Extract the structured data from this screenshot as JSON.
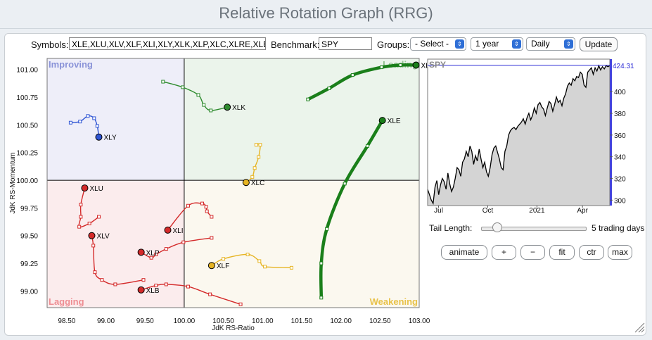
{
  "title": "Relative Rotation Graph (RRG)",
  "controls": {
    "symbols_label": "Symbols:",
    "symbols_value": "XLE,XLU,XLV,XLF,XLI,XLY,XLK,XLP,XLC,XLRE,XLB",
    "benchmark_label": "Benchmark:",
    "benchmark_value": "SPY",
    "groups_label": "Groups:",
    "groups_value": "- Select -",
    "period_value": "1 year",
    "frequency_value": "Daily",
    "update_label": "Update"
  },
  "tail": {
    "label": "Tail Length:",
    "value_text": "5 trading days",
    "value": 5
  },
  "buttons": {
    "animate": "animate",
    "plus": "+",
    "minus": "−",
    "fit": "fit",
    "ctr": "ctr",
    "max": "max"
  },
  "colors": {
    "improving": "#eeeef9",
    "leading": "#ebf4eb",
    "lagging": "#fbeced",
    "weakening": "#fbf8ef"
  },
  "chart_data": [
    {
      "type": "scatter",
      "xlabel": "JdK RS-Ratio",
      "ylabel": "JdK RS-Momentum",
      "xlim": [
        98.25,
        103.0
      ],
      "ylim": [
        98.85,
        101.1
      ],
      "xticks": [
        "98.50",
        "99.00",
        "99.50",
        "100.00",
        "100.50",
        "101.00",
        "101.50",
        "102.00",
        "102.50",
        "103.00"
      ],
      "xtick_values": [
        98.5,
        99.0,
        99.5,
        100.0,
        100.5,
        101.0,
        101.5,
        102.0,
        102.5,
        103.0
      ],
      "yticks": [
        "99.00",
        "99.25",
        "99.50",
        "99.75",
        "100.00",
        "100.25",
        "100.50",
        "100.75",
        "101.00"
      ],
      "ytick_values": [
        99.0,
        99.25,
        99.5,
        99.75,
        100.0,
        100.25,
        100.5,
        100.75,
        101.0
      ],
      "quadrants": {
        "improving": "Improving",
        "leading": "Leading",
        "lagging": "Lagging",
        "weakening": "Weakening"
      },
      "series": [
        {
          "name": "XLRE",
          "color": "#1a7f1a",
          "thick": true,
          "points": [
            [
              101.58,
              100.73
            ],
            [
              101.85,
              100.83
            ],
            [
              102.15,
              100.95
            ],
            [
              102.52,
              101.02
            ],
            [
              102.76,
              101.04
            ],
            [
              102.96,
              101.04
            ]
          ]
        },
        {
          "name": "XLE",
          "color": "#1a7f1a",
          "thick": true,
          "points": [
            [
              101.75,
              98.94
            ],
            [
              101.75,
              99.25
            ],
            [
              101.82,
              99.56
            ],
            [
              102.05,
              99.97
            ],
            [
              102.34,
              100.31
            ],
            [
              102.53,
              100.54
            ]
          ]
        },
        {
          "name": "XLK",
          "color": "#2e8b2e",
          "thick": false,
          "points": [
            [
              99.73,
              100.89
            ],
            [
              99.98,
              100.84
            ],
            [
              100.18,
              100.77
            ],
            [
              100.25,
              100.68
            ],
            [
              100.34,
              100.63
            ],
            [
              100.55,
              100.66
            ]
          ]
        },
        {
          "name": "XLY",
          "color": "#2f55d4",
          "thick": false,
          "points": [
            [
              98.55,
              100.52
            ],
            [
              98.67,
              100.53
            ],
            [
              98.77,
              100.58
            ],
            [
              98.85,
              100.56
            ],
            [
              98.89,
              100.49
            ],
            [
              98.91,
              100.39
            ]
          ]
        },
        {
          "name": "XLC",
          "color": "#e6b422",
          "thick": false,
          "points": [
            [
              100.92,
              100.32
            ],
            [
              100.97,
              100.32
            ],
            [
              100.95,
              100.21
            ],
            [
              100.9,
              100.11
            ],
            [
              100.87,
              100.03
            ],
            [
              100.79,
              99.98
            ]
          ]
        },
        {
          "name": "XLU",
          "color": "#d42a2a",
          "thick": false,
          "points": [
            [
              98.91,
              99.67
            ],
            [
              98.79,
              99.61
            ],
            [
              98.66,
              99.58
            ],
            [
              98.68,
              99.67
            ],
            [
              98.68,
              99.78
            ],
            [
              98.73,
              99.93
            ]
          ]
        },
        {
          "name": "XLI",
          "color": "#d42a2a",
          "thick": false,
          "points": [
            [
              100.35,
              99.67
            ],
            [
              100.29,
              99.72
            ],
            [
              100.28,
              99.76
            ],
            [
              100.23,
              99.79
            ],
            [
              100.05,
              99.77
            ],
            [
              99.79,
              99.55
            ]
          ]
        },
        {
          "name": "XLV",
          "color": "#d42a2a",
          "thick": false,
          "points": [
            [
              99.48,
              99.1
            ],
            [
              99.12,
              99.06
            ],
            [
              98.95,
              99.1
            ],
            [
              98.86,
              99.17
            ],
            [
              98.84,
              99.41
            ],
            [
              98.82,
              99.5
            ]
          ]
        },
        {
          "name": "XLP",
          "color": "#d42a2a",
          "thick": false,
          "points": [
            [
              100.35,
              99.48
            ],
            [
              99.99,
              99.44
            ],
            [
              99.77,
              99.38
            ],
            [
              99.64,
              99.33
            ],
            [
              99.58,
              99.3
            ],
            [
              99.45,
              99.35
            ]
          ]
        },
        {
          "name": "XLF",
          "color": "#e6b422",
          "thick": false,
          "points": [
            [
              101.37,
              99.21
            ],
            [
              101.03,
              99.22
            ],
            [
              100.96,
              99.27
            ],
            [
              100.81,
              99.33
            ],
            [
              100.5,
              99.29
            ],
            [
              100.35,
              99.23
            ]
          ]
        },
        {
          "name": "XLB",
          "color": "#d42a2a",
          "thick": false,
          "points": [
            [
              100.72,
              98.88
            ],
            [
              100.33,
              98.97
            ],
            [
              100.05,
              99.04
            ],
            [
              99.77,
              99.06
            ],
            [
              99.64,
              99.05
            ],
            [
              99.45,
              99.01
            ]
          ]
        }
      ]
    },
    {
      "type": "area",
      "title": "SPY",
      "last_value_label": "424.31",
      "last_value": 424.31,
      "ylim": [
        295,
        430
      ],
      "yticks": [
        "300",
        "320",
        "340",
        "360",
        "380",
        "400"
      ],
      "ytick_values": [
        300,
        320,
        340,
        360,
        380,
        400
      ],
      "xticks": [
        "Jul",
        "Oct",
        "2021",
        "Apr"
      ],
      "xtick_values": [
        0.06,
        0.33,
        0.6,
        0.85
      ],
      "values": [
        310,
        305,
        300,
        297,
        312,
        318,
        305,
        314,
        320,
        317,
        310,
        325,
        315,
        308,
        312,
        320,
        330,
        328,
        322,
        335,
        338,
        345,
        340,
        350,
        345,
        333,
        341,
        336,
        347,
        338,
        330,
        335,
        326,
        322,
        330,
        342,
        348,
        350,
        344,
        338,
        330,
        328,
        345,
        350,
        360,
        364,
        366,
        367,
        365,
        368,
        370,
        372,
        375,
        370,
        376,
        380,
        374,
        378,
        385,
        380,
        388,
        390,
        386,
        384,
        378,
        385,
        391,
        389,
        382,
        388,
        395,
        390,
        392,
        387,
        394,
        398,
        405,
        408,
        406,
        412,
        410,
        414,
        413,
        418,
        416,
        406,
        404,
        418,
        420,
        422,
        416,
        422,
        419,
        424,
        420,
        423,
        421,
        424,
        423,
        424
      ]
    }
  ]
}
